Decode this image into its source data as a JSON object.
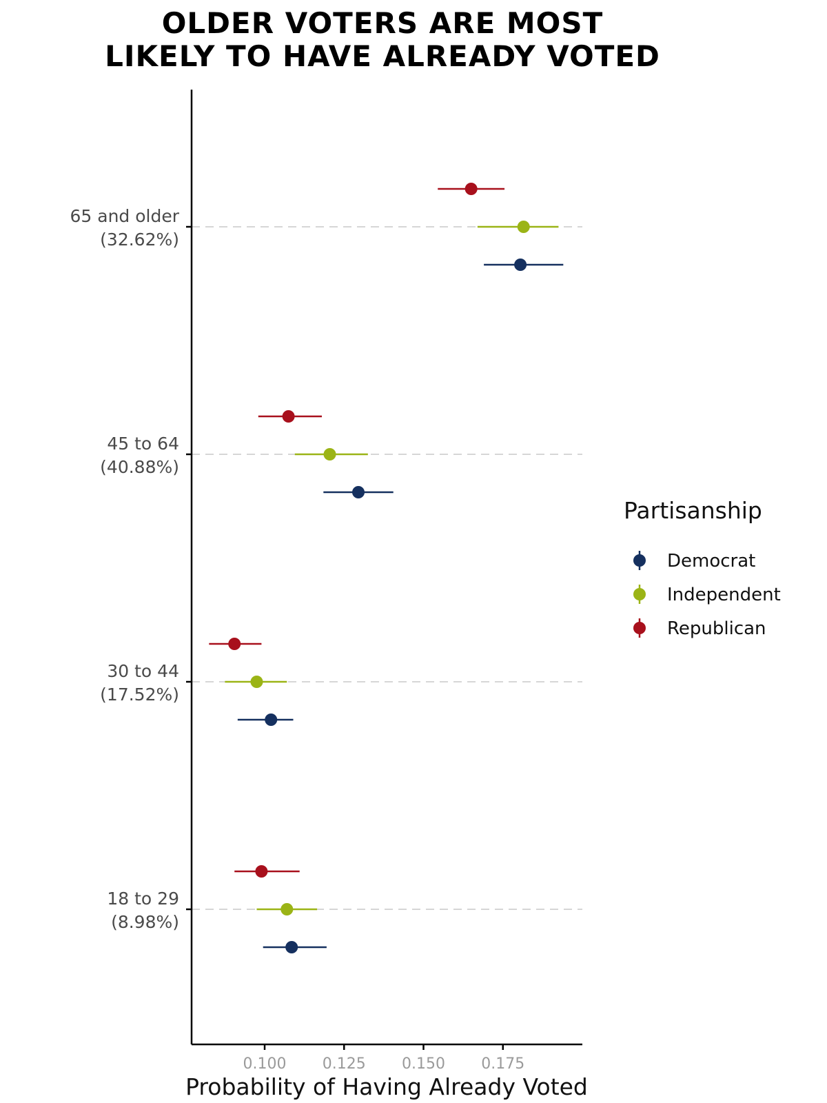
{
  "chart_data": {
    "type": "scatter",
    "subtype": "dot-and-whisker",
    "title_lines": [
      "OLDER VOTERS ARE MOST",
      "LIKELY TO HAVE ALREADY VOTED"
    ],
    "xlabel": "Probability of Having Already Voted",
    "ylabel": "",
    "xlim": [
      0.077,
      0.2
    ],
    "xticks": [
      "0.100",
      "0.125",
      "0.150",
      "0.175"
    ],
    "xtick_values": [
      0.1,
      0.125,
      0.15,
      0.175
    ],
    "grid": "horizontal dashed at category positions",
    "categories": [
      {
        "label_line1": "65 and older",
        "label_line2": "(32.62%)"
      },
      {
        "label_line1": "45 to 64",
        "label_line2": "(40.88%)"
      },
      {
        "label_line1": "30 to 44",
        "label_line2": "(17.52%)"
      },
      {
        "label_line1": "18 to 29",
        "label_line2": "(8.98%)"
      }
    ],
    "legend": {
      "title": "Partisanship",
      "position": "right"
    },
    "series": [
      {
        "name": "Republican",
        "color": "#a8101c",
        "values": [
          0.165,
          0.1075,
          0.0905,
          0.099
        ],
        "low": [
          0.1545,
          0.098,
          0.0825,
          0.0905
        ],
        "high": [
          0.1755,
          0.118,
          0.099,
          0.111
        ]
      },
      {
        "name": "Independent",
        "color": "#9bb416",
        "values": [
          0.1815,
          0.1205,
          0.0975,
          0.107
        ],
        "low": [
          0.167,
          0.1095,
          0.0875,
          0.0975
        ],
        "high": [
          0.1925,
          0.1325,
          0.107,
          0.1165
        ]
      },
      {
        "name": "Democrat",
        "color": "#15305f",
        "values": [
          0.1805,
          0.1295,
          0.102,
          0.1085
        ],
        "low": [
          0.169,
          0.1185,
          0.0915,
          0.0995
        ],
        "high": [
          0.194,
          0.1405,
          0.109,
          0.1195
        ]
      }
    ],
    "legend_order": [
      "Democrat",
      "Independent",
      "Republican"
    ]
  }
}
